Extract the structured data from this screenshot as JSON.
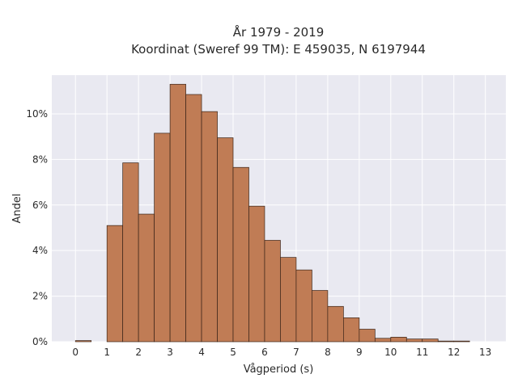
{
  "chart_data": {
    "type": "bar",
    "title_line1": "År 1979 - 2019",
    "title_line2": "Koordinat (Sweref 99 TM): E 459035, N 6197944",
    "xlabel": "Vågperiod (s)",
    "ylabel": "Andel",
    "bin_width": 0.5,
    "bin_starts": [
      0,
      0.5,
      1,
      1.5,
      2,
      2.5,
      3,
      3.5,
      4,
      4.5,
      5,
      5.5,
      6,
      6.5,
      7,
      7.5,
      8,
      8.5,
      9,
      9.5,
      10,
      10.5,
      11,
      11.5,
      12,
      12.5
    ],
    "values": [
      0.05,
      0,
      5.1,
      7.85,
      5.6,
      9.15,
      11.3,
      10.85,
      10.1,
      8.95,
      7.65,
      5.95,
      4.45,
      3.7,
      3.15,
      2.25,
      1.55,
      1.05,
      0.55,
      0.15,
      0.2,
      0.12,
      0.12,
      0.03,
      0.03,
      0
    ],
    "xlim": [
      -0.75,
      13.65
    ],
    "ylim": [
      0,
      11.7
    ],
    "x_ticks": [
      0,
      1,
      2,
      3,
      4,
      5,
      6,
      7,
      8,
      9,
      10,
      11,
      12,
      13
    ],
    "y_ticks": [
      0,
      2,
      4,
      6,
      8,
      10
    ],
    "y_tick_labels": [
      "0%",
      "2%",
      "4%",
      "6%",
      "8%",
      "10%"
    ],
    "grid": true,
    "colors": {
      "bar_fill": "#c07c55",
      "bar_stroke": "#3a2418",
      "plot_background": "#e9e9f1",
      "grid": "#ffffff"
    }
  }
}
